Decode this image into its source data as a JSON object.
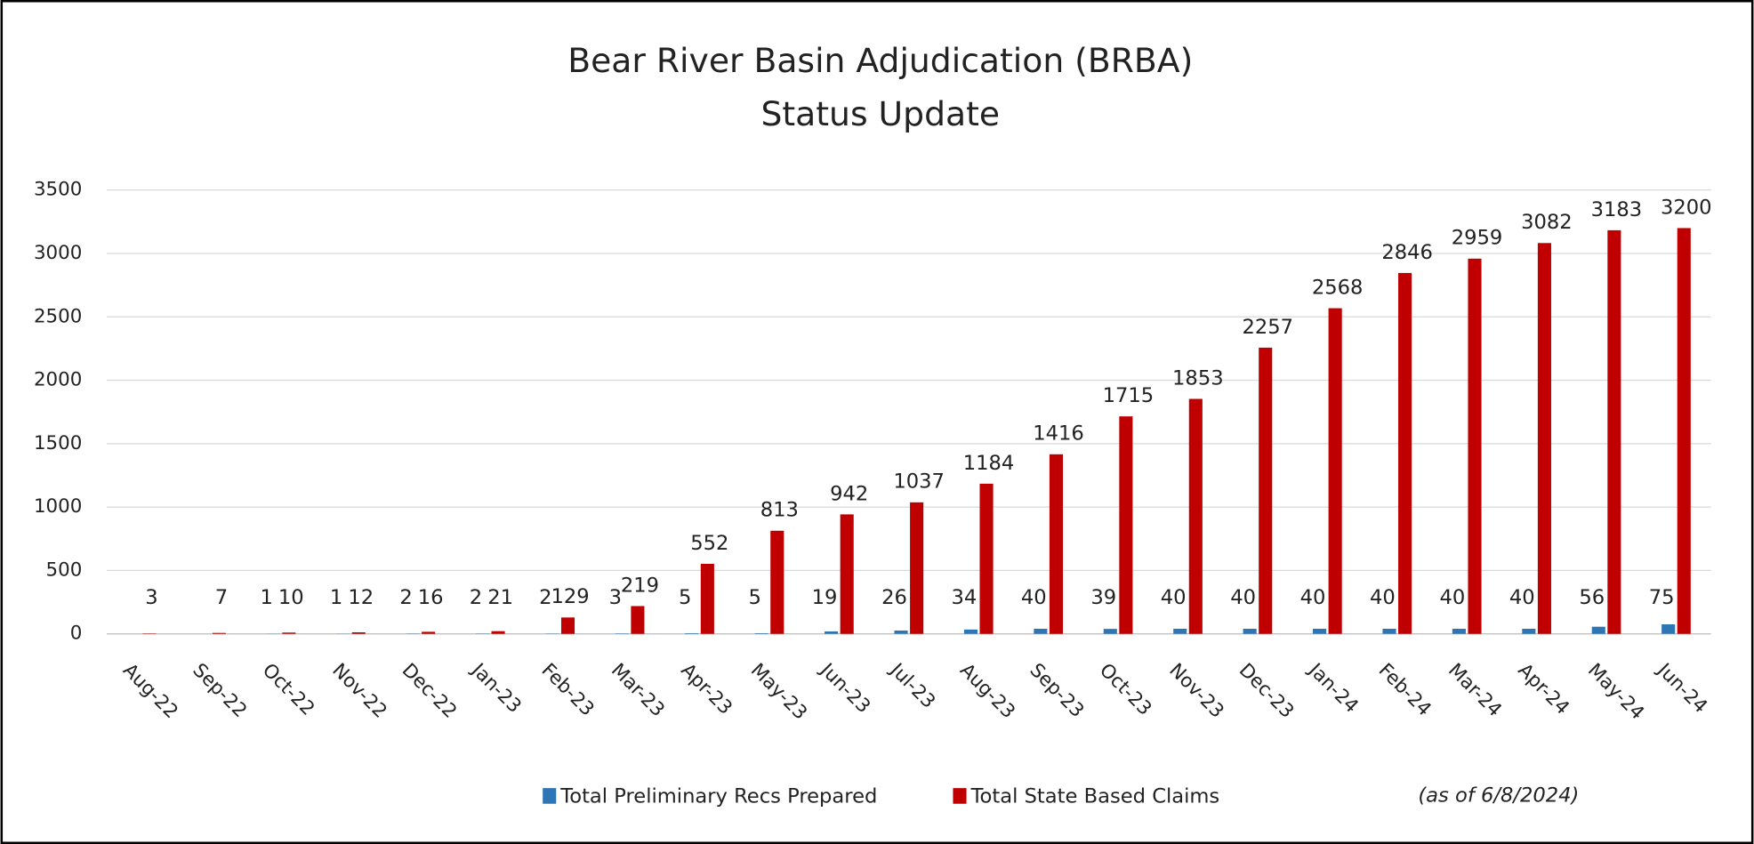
{
  "chart_data": {
    "type": "bar",
    "title": "Bear River Basin Adjudication (BRBA)",
    "subtitle": "Status Update",
    "note": "(as of 6/8/2024)",
    "categories": [
      "Aug-22",
      "Sep-22",
      "Oct-22",
      "Nov-22",
      "Dec-22",
      "Jan-23",
      "Feb-23",
      "Mar-23",
      "Apr-23",
      "May-23",
      "Jun-23",
      "Jul-23",
      "Aug-23",
      "Sep-23",
      "Oct-23",
      "Nov-23",
      "Dec-23",
      "Jan-24",
      "Feb-24",
      "Mar-24",
      "Apr-24",
      "May-24",
      "Jun-24"
    ],
    "series": [
      {
        "name": "Total Preliminary Recs Prepared",
        "color": "#2e75b6",
        "values": [
          null,
          null,
          1,
          1,
          2,
          2,
          2,
          3,
          5,
          5,
          19,
          26,
          34,
          40,
          39,
          40,
          40,
          40,
          40,
          40,
          40,
          56,
          75
        ]
      },
      {
        "name": "Total State Based Claims",
        "color": "#c00000",
        "values": [
          3,
          7,
          10,
          12,
          16,
          21,
          129,
          219,
          552,
          813,
          942,
          1037,
          1184,
          1416,
          1715,
          1853,
          2257,
          2568,
          2846,
          2959,
          3082,
          3183,
          3200
        ]
      }
    ],
    "ylim": [
      0,
      3500
    ],
    "yticks": [
      0,
      500,
      1000,
      1500,
      2000,
      2500,
      3000,
      3500
    ],
    "grid": true,
    "legend": "bottom"
  }
}
